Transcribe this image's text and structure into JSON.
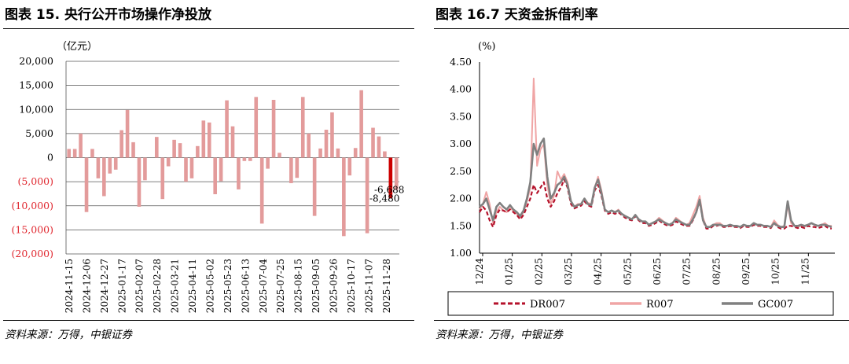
{
  "left": {
    "title": "图表 15.  央行公开市场操作净投放",
    "source": "资料来源：万得，中银证券"
  },
  "right": {
    "title": "图表 16.7 天资金拆借利率",
    "source": "资料来源：万得，中银证券"
  },
  "chart_data": [
    {
      "type": "bar",
      "unit_label": "（亿元）",
      "ylim": [
        -20000,
        20000
      ],
      "yticks": [
        20000,
        15000,
        10000,
        5000,
        0,
        -5000,
        -10000,
        -15000,
        -20000
      ],
      "ytick_labels": [
        "20,000",
        "15,000",
        "10,000",
        "5,000",
        "0",
        "(5,000)",
        "(10,000)",
        "(15,000)",
        "(20,000)"
      ],
      "negative_tick_color": "#e0262e",
      "x_tick_labels": [
        "2024-11-15",
        "2024-12-06",
        "2024-12-27",
        "2025-01-17",
        "2025-02-07",
        "2025-02-28",
        "2025-03-21",
        "2025-04-11",
        "2025-05-02",
        "2025-05-23",
        "2025-06-13",
        "2025-07-04",
        "2025-07-25",
        "2025-08-15",
        "2025-09-05",
        "2025-09-26",
        "2025-10-17",
        "2025-11-07",
        "2025-11-28"
      ],
      "values": [
        1800,
        1800,
        5000,
        -11300,
        1800,
        -4300,
        -8000,
        -3300,
        -2500,
        5700,
        9900,
        3200,
        -10200,
        -4700,
        0,
        4300,
        -8600,
        -1800,
        3700,
        3000,
        -5000,
        -4300,
        2400,
        7700,
        7300,
        -7600,
        -4900,
        11900,
        6500,
        -6600,
        -700,
        -700,
        12600,
        -13700,
        -2300,
        12000,
        1000,
        0,
        -5300,
        -4200,
        12600,
        5000,
        -12100,
        1900,
        5800,
        9400,
        1900,
        -16300,
        -3700,
        2000,
        14000,
        -15700,
        6200,
        4400,
        1300,
        -8480,
        -6688
      ],
      "bar_color": "#e39b9b",
      "highlight_color": "#cc0000",
      "annotations": [
        {
          "text": "-6,688",
          "value": -6688
        },
        {
          "text": "-8,480",
          "value": -8480
        }
      ]
    },
    {
      "type": "line",
      "unit_label": "(%)",
      "ylim": [
        1.0,
        4.5
      ],
      "yticks": [
        1.0,
        1.5,
        2.0,
        2.5,
        3.0,
        3.5,
        4.0,
        4.5
      ],
      "ytick_labels": [
        "1.00",
        "1.50",
        "2.00",
        "2.50",
        "3.00",
        "3.50",
        "4.00",
        "4.50"
      ],
      "x_tick_labels": [
        "12/24",
        "01/25",
        "02/25",
        "03/25",
        "04/25",
        "05/25",
        "06/25",
        "07/25",
        "08/25",
        "09/25",
        "10/25",
        "11/25"
      ],
      "series": [
        {
          "name": "DR007",
          "color": "#b5122b",
          "style": "dashed",
          "values": [
            1.75,
            1.85,
            1.78,
            1.6,
            1.48,
            1.7,
            1.8,
            1.78,
            1.75,
            1.8,
            1.75,
            1.7,
            1.62,
            1.7,
            1.85,
            2.0,
            2.25,
            2.1,
            2.2,
            2.3,
            2.0,
            1.85,
            1.95,
            2.1,
            2.2,
            2.35,
            2.2,
            1.9,
            1.82,
            1.85,
            1.87,
            1.95,
            1.88,
            1.85,
            2.15,
            2.25,
            2.05,
            1.78,
            1.72,
            1.75,
            1.72,
            1.75,
            1.7,
            1.65,
            1.62,
            1.6,
            1.68,
            1.6,
            1.55,
            1.55,
            1.5,
            1.52,
            1.55,
            1.6,
            1.55,
            1.52,
            1.5,
            1.52,
            1.58,
            1.55,
            1.52,
            1.5,
            1.5,
            1.6,
            1.75,
            1.95,
            1.6,
            1.45,
            1.45,
            1.5,
            1.5,
            1.52,
            1.48,
            1.48,
            1.5,
            1.48,
            1.48,
            1.46,
            1.5,
            1.48,
            1.48,
            1.52,
            1.5,
            1.5,
            1.48,
            1.48,
            1.46,
            1.55,
            1.48,
            1.45,
            1.45,
            1.5,
            1.5,
            1.48,
            1.46,
            1.48,
            1.46,
            1.5,
            1.48,
            1.48,
            1.46,
            1.48,
            1.5,
            1.46,
            1.45
          ]
        },
        {
          "name": "R007",
          "color": "#f0a5a5",
          "style": "solid",
          "values": [
            1.8,
            1.9,
            2.12,
            1.9,
            1.55,
            1.75,
            1.85,
            1.78,
            1.75,
            1.82,
            1.78,
            1.72,
            1.65,
            1.75,
            1.95,
            2.2,
            4.2,
            2.6,
            2.9,
            3.0,
            2.25,
            1.9,
            2.05,
            2.5,
            2.35,
            2.45,
            2.3,
            1.95,
            1.85,
            1.9,
            1.9,
            2.0,
            1.92,
            1.9,
            2.2,
            2.4,
            2.15,
            1.8,
            1.75,
            1.78,
            1.75,
            1.8,
            1.72,
            1.68,
            1.65,
            1.62,
            1.7,
            1.62,
            1.58,
            1.58,
            1.52,
            1.55,
            1.58,
            1.65,
            1.6,
            1.55,
            1.52,
            1.55,
            1.65,
            1.6,
            1.55,
            1.52,
            1.55,
            1.7,
            1.85,
            2.05,
            1.65,
            1.48,
            1.48,
            1.52,
            1.55,
            1.55,
            1.5,
            1.5,
            1.52,
            1.5,
            1.5,
            1.48,
            1.52,
            1.5,
            1.5,
            1.55,
            1.52,
            1.52,
            1.5,
            1.5,
            1.48,
            1.6,
            1.52,
            1.48,
            1.5,
            1.88,
            1.55,
            1.5,
            1.48,
            1.5,
            1.48,
            1.52,
            1.55,
            1.52,
            1.5,
            1.52,
            1.55,
            1.5,
            1.5
          ]
        },
        {
          "name": "GC007",
          "color": "#808080",
          "style": "solid",
          "values": [
            1.85,
            1.9,
            2.0,
            1.8,
            1.6,
            1.85,
            1.92,
            1.85,
            1.8,
            1.88,
            1.8,
            1.75,
            1.68,
            1.78,
            2.0,
            2.3,
            3.0,
            2.8,
            3.0,
            3.1,
            2.4,
            2.0,
            2.1,
            2.25,
            2.3,
            2.4,
            2.25,
            1.95,
            1.85,
            1.88,
            1.9,
            2.0,
            1.9,
            1.88,
            2.2,
            2.35,
            2.1,
            1.8,
            1.75,
            1.78,
            1.75,
            1.78,
            1.72,
            1.68,
            1.65,
            1.62,
            1.7,
            1.62,
            1.58,
            1.58,
            1.52,
            1.55,
            1.58,
            1.62,
            1.58,
            1.55,
            1.52,
            1.55,
            1.62,
            1.58,
            1.55,
            1.52,
            1.52,
            1.62,
            1.75,
            1.98,
            1.6,
            1.48,
            1.48,
            1.52,
            1.52,
            1.52,
            1.5,
            1.5,
            1.52,
            1.5,
            1.5,
            1.48,
            1.52,
            1.5,
            1.5,
            1.55,
            1.52,
            1.52,
            1.5,
            1.5,
            1.48,
            1.55,
            1.5,
            1.48,
            1.48,
            1.95,
            1.6,
            1.5,
            1.5,
            1.52,
            1.5,
            1.52,
            1.55,
            1.52,
            1.5,
            1.52,
            1.52,
            1.5,
            1.48
          ]
        }
      ]
    }
  ]
}
